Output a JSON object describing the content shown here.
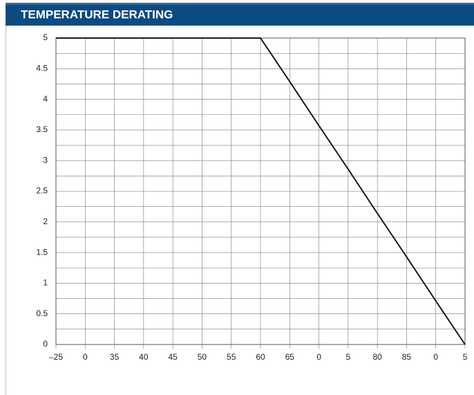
{
  "chart_data": {
    "type": "line",
    "title": "TEMPERATURE DERATING",
    "categories": [
      "–25",
      "0",
      "35",
      "40",
      "45",
      "50",
      "55",
      "60",
      "65",
      "0",
      "5",
      "80",
      "85",
      "0",
      "5"
    ],
    "values": [
      5,
      5,
      5,
      5,
      5,
      5,
      5,
      5,
      4.29,
      3.57,
      2.86,
      2.14,
      1.43,
      0.71,
      0
    ],
    "color": "#1a1a1a",
    "ylim": [
      0,
      5
    ],
    "yticks": [
      0,
      0.5,
      1,
      1.5,
      2,
      2.5,
      3,
      3.5,
      4,
      4.5,
      5
    ],
    "yminorticks": [
      0.25,
      0.75,
      1.25,
      1.75,
      2.25,
      2.75,
      3.25,
      3.75,
      4.25,
      4.75
    ],
    "grid": true
  }
}
